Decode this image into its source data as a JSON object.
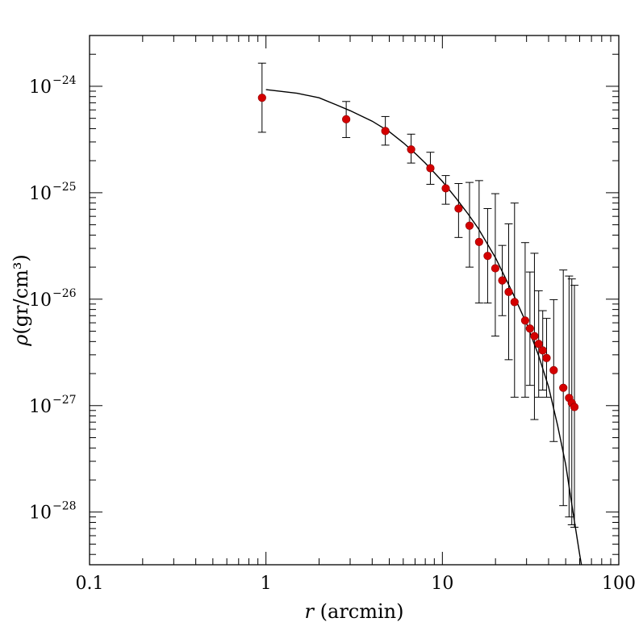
{
  "chart_data": {
    "type": "scatter",
    "title": "",
    "xlabel": "r (arcmin)",
    "ylabel_html": "ρ(gr/cm³)",
    "xlabel_parts": {
      "var": "r",
      "unit": "(arcmin)"
    },
    "ylabel_parts": {
      "var": "ρ",
      "unit": "(gr/cm³)"
    },
    "x_scale": "log",
    "y_scale": "log",
    "xlim": [
      0.1,
      100
    ],
    "ylim": [
      3.2e-29,
      3e-24
    ],
    "grid": false,
    "x_tick_values": [
      0.1,
      1,
      10,
      100
    ],
    "x_tick_labels": [
      "0.1",
      "1",
      "10",
      "100"
    ],
    "y_tick_values": [
      1e-24,
      1e-25,
      1e-26,
      1e-27,
      1e-28
    ],
    "y_tick_labels": [
      {
        "base": "10",
        "exp": "−24"
      },
      {
        "base": "10",
        "exp": "−25"
      },
      {
        "base": "10",
        "exp": "−26"
      },
      {
        "base": "10",
        "exp": "−27"
      },
      {
        "base": "10",
        "exp": "−28"
      }
    ],
    "colors": {
      "points": "#d40000",
      "point_edge": "#8a0000",
      "line": "#000000",
      "errorbars": "#000000"
    },
    "series": [
      {
        "kind": "points_with_errorbars",
        "points": [
          {
            "x": 0.95,
            "y": 7.8e-25,
            "ylo": 3.7e-25,
            "yhi": 1.65e-24
          },
          {
            "x": 2.85,
            "y": 4.9e-25,
            "ylo": 3.3e-25,
            "yhi": 7.2e-25
          },
          {
            "x": 4.75,
            "y": 3.8e-25,
            "ylo": 2.8e-25,
            "yhi": 5.2e-25
          },
          {
            "x": 6.65,
            "y": 2.55e-25,
            "ylo": 1.9e-25,
            "yhi": 3.55e-25
          },
          {
            "x": 8.55,
            "y": 1.7e-25,
            "ylo": 1.2e-25,
            "yhi": 2.4e-25
          },
          {
            "x": 10.45,
            "y": 1.1e-25,
            "ylo": 7.8e-26,
            "yhi": 1.45e-25
          },
          {
            "x": 12.35,
            "y": 7.1e-26,
            "ylo": 3.8e-26,
            "yhi": 1.22e-25
          },
          {
            "x": 14.25,
            "y": 4.9e-26,
            "ylo": 2e-26,
            "yhi": 1.25e-25
          },
          {
            "x": 16.15,
            "y": 3.45e-26,
            "ylo": 9.2e-27,
            "yhi": 1.3e-25
          },
          {
            "x": 18.05,
            "y": 2.55e-26,
            "ylo": 9.2e-27,
            "yhi": 7.1e-26
          },
          {
            "x": 19.95,
            "y": 1.95e-26,
            "ylo": 4.5e-27,
            "yhi": 9.8e-26
          },
          {
            "x": 21.85,
            "y": 1.5e-26,
            "ylo": 7e-27,
            "yhi": 3.2e-26
          },
          {
            "x": 23.75,
            "y": 1.17e-26,
            "ylo": 2.7e-27,
            "yhi": 5.1e-26
          },
          {
            "x": 25.65,
            "y": 9.4e-27,
            "ylo": 1.2e-27,
            "yhi": 8e-26
          },
          {
            "x": 29.45,
            "y": 6.3e-27,
            "ylo": 1.2e-27,
            "yhi": 3.4e-26
          },
          {
            "x": 31.35,
            "y": 5.3e-27,
            "ylo": 1.55e-27,
            "yhi": 1.8e-26
          },
          {
            "x": 33.25,
            "y": 4.5e-27,
            "ylo": 7.4e-28,
            "yhi": 2.7e-26
          },
          {
            "x": 35.15,
            "y": 3.8e-27,
            "ylo": 1.2e-27,
            "yhi": 1.2e-26
          },
          {
            "x": 37.05,
            "y": 3.3e-27,
            "ylo": 1.4e-27,
            "yhi": 7.8e-27
          },
          {
            "x": 38.95,
            "y": 2.8e-27,
            "ylo": 1.2e-27,
            "yhi": 6.6e-27
          },
          {
            "x": 42.75,
            "y": 2.15e-27,
            "ylo": 4.6e-28,
            "yhi": 9.9e-27
          },
          {
            "x": 48.45,
            "y": 1.47e-27,
            "ylo": 1.15e-28,
            "yhi": 1.88e-26
          },
          {
            "x": 52.25,
            "y": 1.18e-27,
            "ylo": 9e-29,
            "yhi": 1.65e-26
          },
          {
            "x": 54.15,
            "y": 1.06e-27,
            "ylo": 7.6e-29,
            "yhi": 1.55e-26
          },
          {
            "x": 56.05,
            "y": 9.7e-28,
            "ylo": 7.2e-29,
            "yhi": 1.35e-26
          }
        ]
      },
      {
        "kind": "model_line",
        "x": [
          1,
          1.5,
          2,
          2.5,
          3,
          4,
          5,
          6,
          7,
          8,
          10,
          12,
          14,
          16,
          18,
          20,
          25,
          30,
          35,
          40,
          45,
          50,
          55,
          60,
          63
        ],
        "y": [
          9.3e-25,
          8.6e-25,
          7.8e-25,
          6.7e-25,
          5.9e-25,
          4.7e-25,
          3.75e-25,
          2.95e-25,
          2.35e-25,
          1.9e-25,
          1.28e-25,
          8.8e-26,
          6.3e-26,
          4.6e-26,
          3.3e-26,
          2.45e-26,
          1.15e-26,
          5.9e-27,
          3e-27,
          1.5e-27,
          6.5e-28,
          2.8e-28,
          1e-28,
          4e-29,
          2.5e-29
        ]
      }
    ]
  }
}
